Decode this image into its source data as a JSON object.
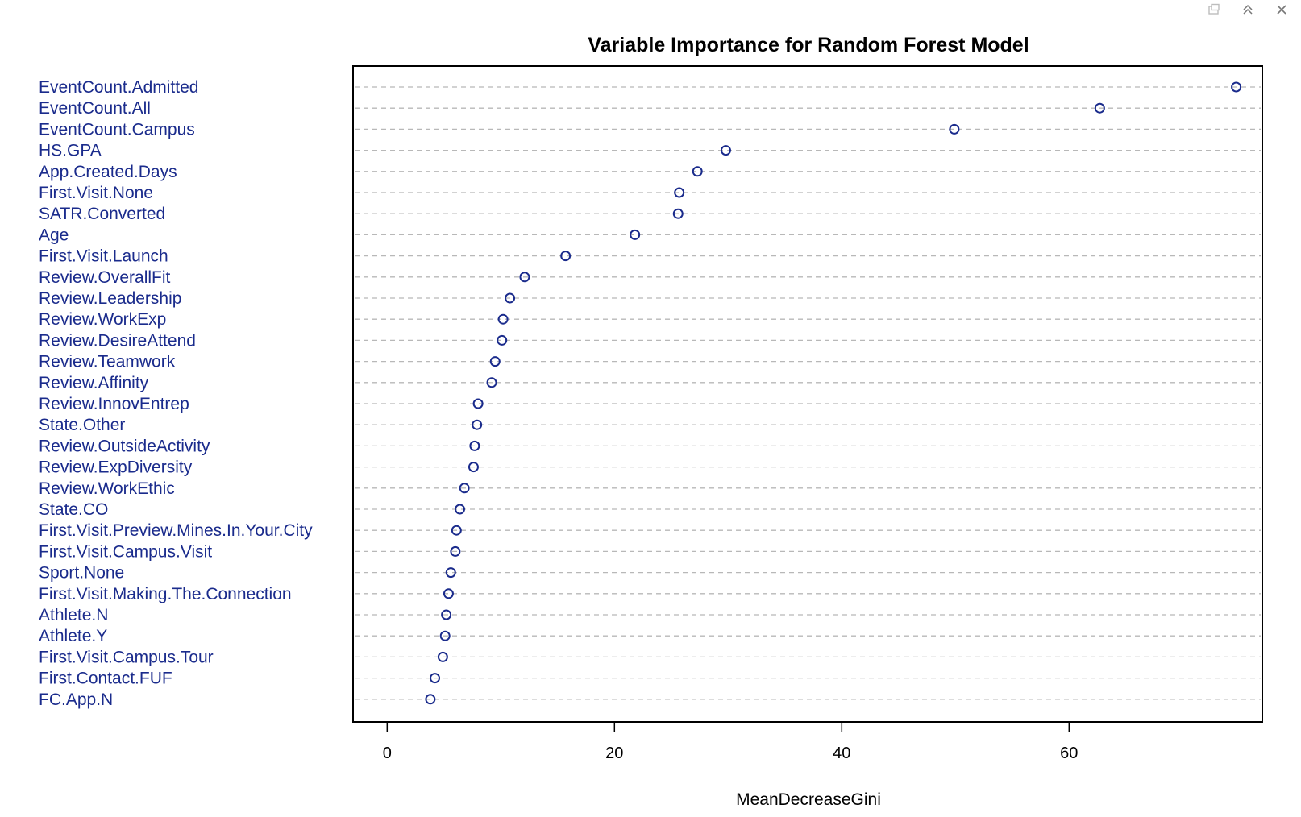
{
  "window": {
    "controls": [
      {
        "icon": "popout-icon"
      },
      {
        "icon": "collapse-icon"
      },
      {
        "icon": "close-icon"
      }
    ]
  },
  "chart_data": {
    "type": "scatter",
    "title": "Variable Importance for Random Forest Model",
    "xlabel": "MeanDecreaseGini",
    "ylabel": "",
    "xlim": [
      -3,
      77
    ],
    "xticks": [
      0,
      20,
      40,
      60
    ],
    "grid": true,
    "point_color": "#1a2b8c",
    "categories": [
      "EventCount.Admitted",
      "EventCount.All",
      "EventCount.Campus",
      "HS.GPA",
      "App.Created.Days",
      "First.Visit.None",
      "SATR.Converted",
      "Age",
      "First.Visit.Launch",
      "Review.OverallFit",
      "Review.Leadership",
      "Review.WorkExp",
      "Review.DesireAttend",
      "Review.Teamwork",
      "Review.Affinity",
      "Review.InnovEntrep",
      "State.Other",
      "Review.OutsideActivity",
      "Review.ExpDiversity",
      "Review.WorkEthic",
      "State.CO",
      "First.Visit.Preview.Mines.In.Your.City",
      "First.Visit.Campus.Visit",
      "Sport.None",
      "First.Visit.Making.The.Connection",
      "Athlete.N",
      "Athlete.Y",
      "First.Visit.Campus.Tour",
      "First.Contact.FUF",
      "FC.App.N"
    ],
    "values": [
      74.7,
      62.7,
      49.9,
      29.8,
      27.3,
      25.7,
      25.6,
      21.8,
      15.7,
      12.1,
      10.8,
      10.2,
      10.1,
      9.5,
      9.2,
      8.0,
      7.9,
      7.7,
      7.6,
      6.8,
      6.4,
      6.1,
      6.0,
      5.6,
      5.4,
      5.2,
      5.1,
      4.9,
      4.2,
      3.8
    ]
  }
}
